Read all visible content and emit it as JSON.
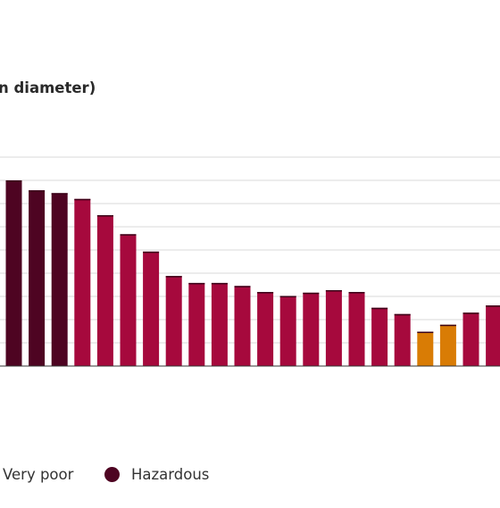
{
  "title": "n diameter)",
  "colors": {
    "hazardous": "#4e0422",
    "very_poor": "#a6093d",
    "poor": "#d97c05",
    "gridline": "#d9d9d9",
    "baseline": "#333333"
  },
  "legend": {
    "items": [
      {
        "label": "Very poor",
        "color": ""
      },
      {
        "label": "Hazardous",
        "color": "#4e0422"
      }
    ]
  },
  "chart_data": {
    "type": "bar",
    "title": "",
    "xlabel": "",
    "ylabel": "",
    "grid": true,
    "ylim": [
      0,
      9.1
    ],
    "legend_position": "bottom",
    "values": [
      8.0,
      7.57,
      7.45,
      7.2,
      6.5,
      5.68,
      4.93,
      3.88,
      3.58,
      3.58,
      3.45,
      3.19,
      3.02,
      3.16,
      3.27,
      3.19,
      2.51,
      2.24,
      1.48,
      1.78,
      2.3,
      2.61
    ],
    "categories_by_band": [
      "hazardous",
      "hazardous",
      "hazardous",
      "very_poor",
      "very_poor",
      "very_poor",
      "very_poor",
      "very_poor",
      "very_poor",
      "very_poor",
      "very_poor",
      "very_poor",
      "very_poor",
      "very_poor",
      "very_poor",
      "very_poor",
      "very_poor",
      "very_poor",
      "poor",
      "poor",
      "very_poor",
      "very_poor"
    ]
  }
}
